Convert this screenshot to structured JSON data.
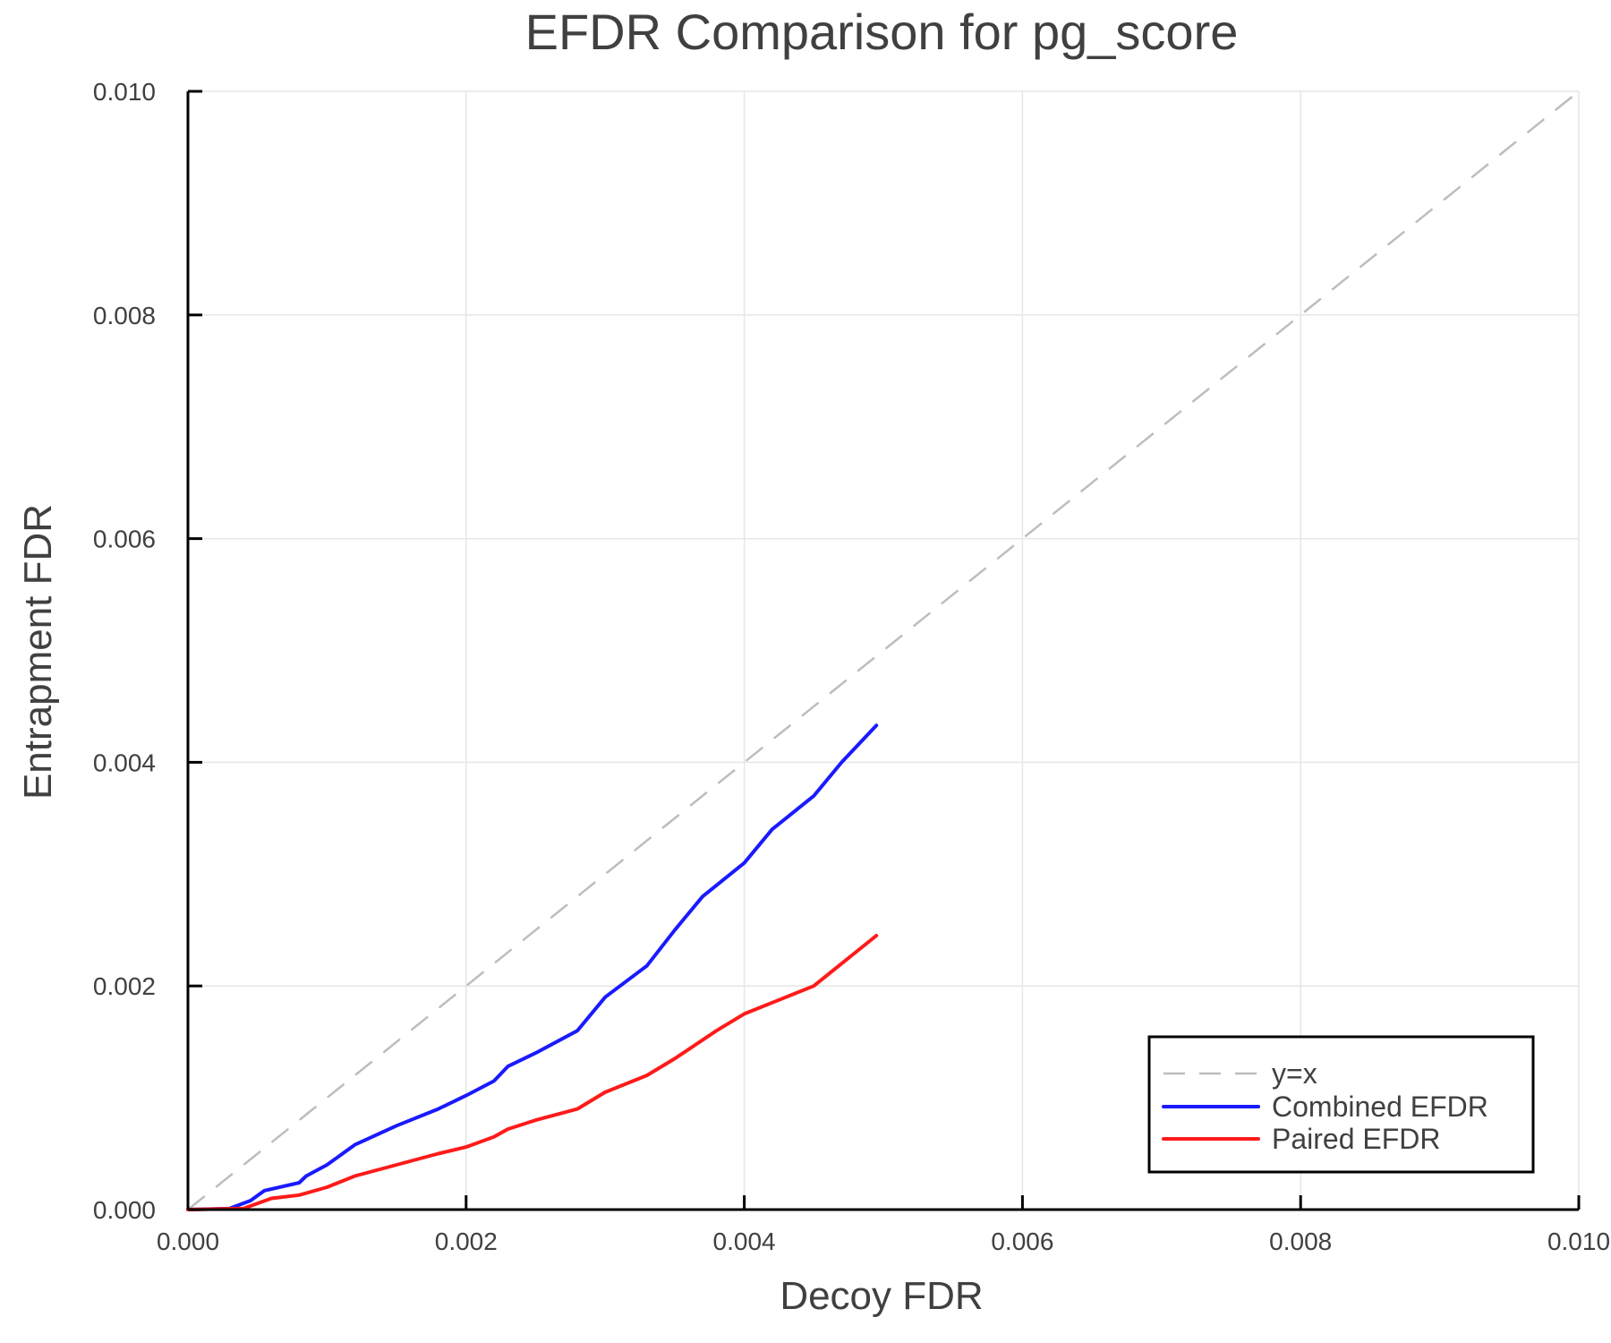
{
  "chart_data": {
    "type": "line",
    "title": "EFDR Comparison for pg_score",
    "xlabel": "Decoy FDR",
    "ylabel": "Entrapment FDR",
    "xlim": [
      0.0,
      0.01
    ],
    "ylim": [
      0.0,
      0.01
    ],
    "xticks": [
      "0.000",
      "0.002",
      "0.004",
      "0.006",
      "0.008",
      "0.010"
    ],
    "yticks": [
      "0.000",
      "0.002",
      "0.004",
      "0.006",
      "0.008",
      "0.010"
    ],
    "grid": true,
    "legend_position": "lower right",
    "series": [
      {
        "name": "y=x",
        "color": "#bdbdbd",
        "style": "dashed",
        "x": [
          0.0,
          0.01
        ],
        "y": [
          0.0,
          0.01
        ]
      },
      {
        "name": "Combined EFDR",
        "color": "#1a1aff",
        "style": "solid",
        "x": [
          0.0,
          0.0003,
          0.00045,
          0.00055,
          0.0008,
          0.00085,
          0.001,
          0.0012,
          0.0015,
          0.0018,
          0.002,
          0.0022,
          0.0023,
          0.0025,
          0.0028,
          0.003,
          0.0033,
          0.0035,
          0.0037,
          0.004,
          0.0042,
          0.0045,
          0.0047,
          0.00495
        ],
        "y": [
          0.0,
          1e-05,
          8e-05,
          0.00017,
          0.00024,
          0.0003,
          0.0004,
          0.00058,
          0.00075,
          0.0009,
          0.00102,
          0.00115,
          0.00128,
          0.0014,
          0.0016,
          0.0019,
          0.00218,
          0.0025,
          0.0028,
          0.0031,
          0.0034,
          0.0037,
          0.004,
          0.00433
        ]
      },
      {
        "name": "Paired EFDR",
        "color": "#ff1a1a",
        "style": "solid",
        "x": [
          0.0,
          0.0004,
          0.0006,
          0.0008,
          0.001,
          0.0012,
          0.0015,
          0.0018,
          0.002,
          0.0022,
          0.0023,
          0.0025,
          0.0028,
          0.003,
          0.0033,
          0.0035,
          0.0038,
          0.004,
          0.0043,
          0.0045,
          0.0047,
          0.00495
        ],
        "y": [
          0.0,
          1e-05,
          0.0001,
          0.00013,
          0.0002,
          0.0003,
          0.0004,
          0.0005,
          0.00056,
          0.00065,
          0.00072,
          0.0008,
          0.0009,
          0.00105,
          0.0012,
          0.00135,
          0.0016,
          0.00175,
          0.0019,
          0.002,
          0.0022,
          0.00245
        ]
      }
    ]
  },
  "legend": {
    "items": [
      {
        "label": "y=x",
        "color": "#bdbdbd",
        "style": "dashed"
      },
      {
        "label": "Combined EFDR",
        "color": "#1a1aff",
        "style": "solid"
      },
      {
        "label": "Paired EFDR",
        "color": "#ff1a1a",
        "style": "solid"
      }
    ]
  },
  "colors": {
    "grid": "#e6e6e6",
    "axis": "#000000",
    "text": "#404040"
  }
}
